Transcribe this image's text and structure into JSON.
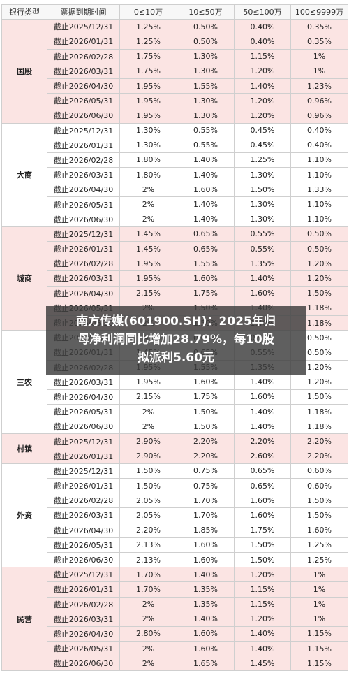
{
  "headers": [
    "银行类型",
    "票据到期时间",
    "0≤10万",
    "10≤50万",
    "50≤100万",
    "100≤9999万"
  ],
  "groups": [
    {
      "bank": "国股",
      "shade": "pink",
      "rows": [
        [
          "截止2025/12/31",
          "1.25%",
          "0.50%",
          "0.40%",
          "0.35%"
        ],
        [
          "截止2026/01/31",
          "1.25%",
          "0.50%",
          "0.40%",
          "0.35%"
        ],
        [
          "截止2026/02/28",
          "1.75%",
          "1.30%",
          "1.15%",
          "1%"
        ],
        [
          "截止2026/03/31",
          "1.75%",
          "1.30%",
          "1.20%",
          "1%"
        ],
        [
          "截止2026/04/30",
          "1.95%",
          "1.55%",
          "1.40%",
          "1.23%"
        ],
        [
          "截止2026/05/31",
          "1.95%",
          "1.30%",
          "1.20%",
          "0.96%"
        ],
        [
          "截止2026/06/30",
          "1.95%",
          "1.30%",
          "1.20%",
          "0.96%"
        ]
      ]
    },
    {
      "bank": "大商",
      "shade": "white",
      "rows": [
        [
          "截止2025/12/31",
          "1.30%",
          "0.55%",
          "0.45%",
          "0.40%"
        ],
        [
          "截止2026/01/31",
          "1.30%",
          "0.55%",
          "0.45%",
          "0.40%"
        ],
        [
          "截止2026/02/28",
          "1.80%",
          "1.40%",
          "1.25%",
          "1.10%"
        ],
        [
          "截止2026/03/31",
          "1.80%",
          "1.40%",
          "1.30%",
          "1.10%"
        ],
        [
          "截止2026/04/30",
          "2%",
          "1.60%",
          "1.50%",
          "1.33%"
        ],
        [
          "截止2026/05/31",
          "2%",
          "1.40%",
          "1.30%",
          "1.10%"
        ],
        [
          "截止2026/06/30",
          "2%",
          "1.40%",
          "1.30%",
          "1.10%"
        ]
      ]
    },
    {
      "bank": "城商",
      "shade": "pink",
      "rows": [
        [
          "截止2025/12/31",
          "1.45%",
          "0.65%",
          "0.55%",
          "0.50%"
        ],
        [
          "截止2026/01/31",
          "1.45%",
          "0.65%",
          "0.55%",
          "0.50%"
        ],
        [
          "截止2026/02/28",
          "1.95%",
          "1.55%",
          "1.35%",
          "1.20%"
        ],
        [
          "截止2026/03/31",
          "1.95%",
          "1.60%",
          "1.40%",
          "1.20%"
        ],
        [
          "截止2026/04/30",
          "2.15%",
          "1.75%",
          "1.60%",
          "1.50%"
        ],
        [
          "截止2026/05/31",
          "2%",
          "1.50%",
          "1.40%",
          "1.18%"
        ],
        [
          "截止2026/06/30",
          "2%",
          "1.50%",
          "1.40%",
          "1.18%"
        ]
      ]
    },
    {
      "bank": "三农",
      "shade": "white",
      "rows": [
        [
          "截止2025/12/31",
          "1.45%",
          "0.65%",
          "0.55%",
          "0.50%"
        ],
        [
          "截止2026/01/31",
          "1.45%",
          "0.65%",
          "0.55%",
          "0.50%"
        ],
        [
          "截止2026/02/28",
          "1.95%",
          "1.55%",
          "1.35%",
          "1.20%"
        ],
        [
          "截止2026/03/31",
          "1.95%",
          "1.60%",
          "1.40%",
          "1.20%"
        ],
        [
          "截止2026/04/30",
          "2.15%",
          "1.75%",
          "1.60%",
          "1.50%"
        ],
        [
          "截止2026/05/31",
          "2%",
          "1.50%",
          "1.40%",
          "1.18%"
        ],
        [
          "截止2026/06/30",
          "2%",
          "1.50%",
          "1.40%",
          "1.18%"
        ]
      ]
    },
    {
      "bank": "村镇",
      "shade": "pink",
      "rows": [
        [
          "截止2025/12/31",
          "2.90%",
          "2.20%",
          "2.20%",
          "2.20%"
        ],
        [
          "截止2026/01/31",
          "2.90%",
          "2.20%",
          "2.60%",
          "2.20%"
        ]
      ]
    },
    {
      "bank": "外资",
      "shade": "white",
      "rows": [
        [
          "截止2025/12/31",
          "1.50%",
          "0.75%",
          "0.65%",
          "0.60%"
        ],
        [
          "截止2026/01/31",
          "1.50%",
          "0.75%",
          "0.65%",
          "0.60%"
        ],
        [
          "截止2026/02/28",
          "2.05%",
          "1.70%",
          "1.60%",
          "1.50%"
        ],
        [
          "截止2026/03/31",
          "2.05%",
          "1.70%",
          "1.60%",
          "1.50%"
        ],
        [
          "截止2026/04/30",
          "2.20%",
          "1.85%",
          "1.75%",
          "1.60%"
        ],
        [
          "截止2026/05/31",
          "2.13%",
          "1.60%",
          "1.50%",
          "1.25%"
        ],
        [
          "截止2026/06/30",
          "2.13%",
          "1.60%",
          "1.50%",
          "1.25%"
        ]
      ]
    },
    {
      "bank": "民营",
      "shade": "pink",
      "rows": [
        [
          "截止2025/12/31",
          "1.70%",
          "1.40%",
          "1.20%",
          "1%"
        ],
        [
          "截止2026/01/31",
          "1.70%",
          "1.35%",
          "1.15%",
          "1%"
        ],
        [
          "截止2026/02/28",
          "2%",
          "1.35%",
          "1.15%",
          "1%"
        ],
        [
          "截止2026/03/31",
          "2%",
          "1.40%",
          "1.20%",
          "1%"
        ],
        [
          "截止2026/04/30",
          "2.80%",
          "1.60%",
          "1.40%",
          "1.15%"
        ],
        [
          "截止2026/05/31",
          "2%",
          "1.60%",
          "1.40%",
          "1.15%"
        ],
        [
          "截止2026/06/30",
          "2%",
          "1.65%",
          "1.45%",
          "1.15%"
        ]
      ]
    }
  ],
  "overlay": {
    "lines": [
      "南方传媒(601900.SH)：2025年归",
      "母净利润同比增加28.79%，每10股",
      "拟派利5.60元"
    ]
  }
}
